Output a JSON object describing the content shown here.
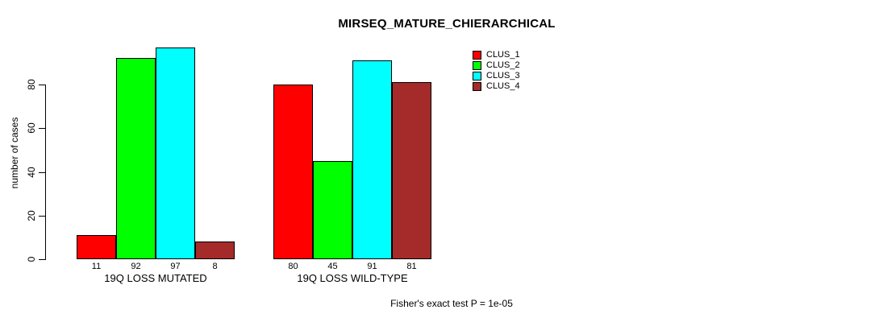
{
  "chart_data": {
    "type": "bar",
    "title": "MIRSEQ_MATURE_CHIERARCHICAL",
    "ylabel": "number of cases",
    "xlabel": "",
    "categories": [
      "19Q LOSS MUTATED",
      "19Q LOSS WILD-TYPE"
    ],
    "series": [
      {
        "name": "CLUS_1",
        "color": "#ff0000",
        "values": [
          11,
          80
        ]
      },
      {
        "name": "CLUS_2",
        "color": "#00ff00",
        "values": [
          92,
          45
        ]
      },
      {
        "name": "CLUS_3",
        "color": "#00ffff",
        "values": [
          97,
          91
        ]
      },
      {
        "name": "CLUS_4",
        "color": "#a52a2a",
        "values": [
          8,
          81
        ]
      }
    ],
    "yticks": [
      0,
      20,
      40,
      60,
      80
    ],
    "ylim": [
      0,
      97
    ],
    "grid": false,
    "bar_value_labels": true,
    "legend": {
      "position": "top-right",
      "entries": [
        "CLUS_1",
        "CLUS_2",
        "CLUS_3",
        "CLUS_4"
      ]
    },
    "annotation": "Fisher's exact test P = 1e-05"
  }
}
